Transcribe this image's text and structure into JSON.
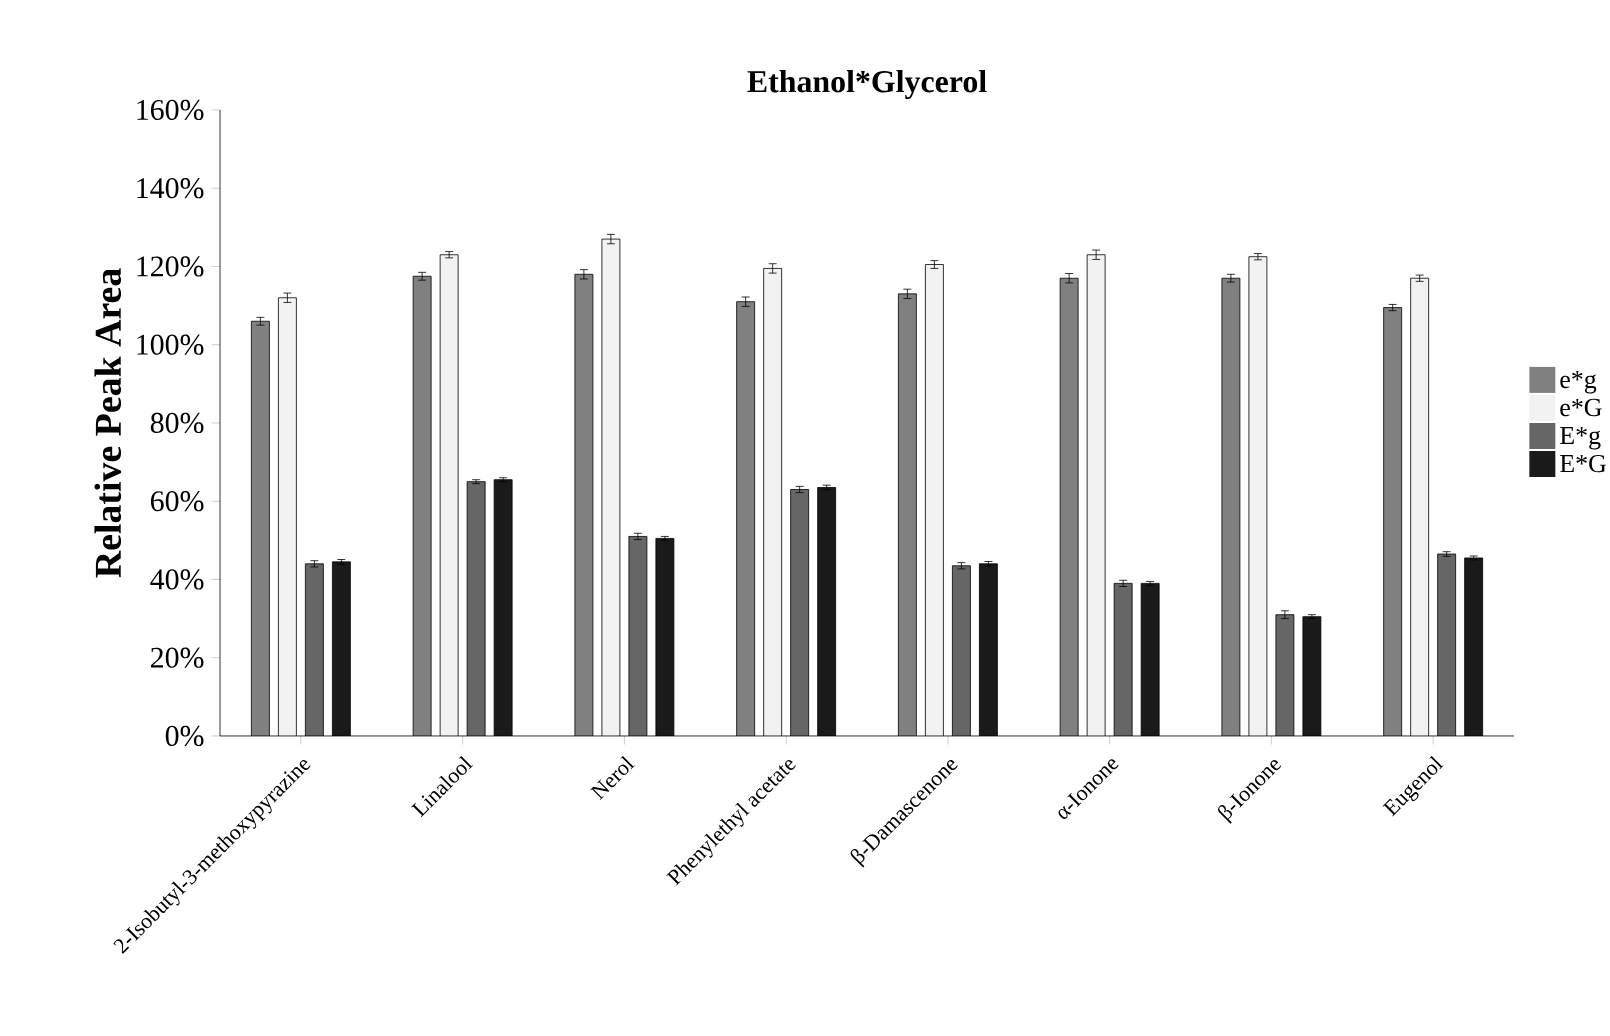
{
  "chart_data": {
    "type": "bar",
    "title": "Ethanol*Glycerol",
    "ylabel": "Relative Peak Area",
    "categories": [
      "2-Isobutyl-3-methoxypyrazine",
      "Linalool",
      "Nerol",
      "Phenylethyl acetate",
      "β-Damascenone",
      "α-Ionone",
      "β-Ionone",
      "Eugenol"
    ],
    "series": [
      {
        "name": "e*g",
        "color": "#808080",
        "values": [
          106,
          117.5,
          118,
          111,
          113,
          117,
          117,
          109.5
        ],
        "errors": [
          1,
          1,
          1.2,
          1.2,
          1.2,
          1.2,
          1,
          0.8
        ]
      },
      {
        "name": "e*G",
        "color": "#f2f2f2",
        "values": [
          112,
          123,
          127,
          119.5,
          120.5,
          123,
          122.5,
          117
        ],
        "errors": [
          1.2,
          0.8,
          1.2,
          1.2,
          1,
          1.2,
          0.8,
          0.8
        ]
      },
      {
        "name": "E*g",
        "color": "#666666",
        "values": [
          44,
          65,
          51,
          63,
          43.5,
          39,
          31,
          46.5
        ],
        "errors": [
          0.8,
          0.5,
          0.8,
          0.8,
          0.8,
          0.8,
          1,
          0.6
        ]
      },
      {
        "name": "E*G",
        "color": "#1a1a1a",
        "values": [
          44.5,
          65.5,
          50.5,
          63.5,
          44,
          39,
          30.5,
          45.5
        ],
        "errors": [
          0.6,
          0.5,
          0.5,
          0.6,
          0.6,
          0.5,
          0.5,
          0.5
        ]
      }
    ],
    "ylim": [
      0,
      160
    ],
    "yticks": [
      {
        "value": 0,
        "label": "0%"
      },
      {
        "value": 20,
        "label": "20%"
      },
      {
        "value": 40,
        "label": "40%"
      },
      {
        "value": 60,
        "label": "60%"
      },
      {
        "value": 80,
        "label": "80%"
      },
      {
        "value": 100,
        "label": "100%"
      },
      {
        "value": 120,
        "label": "120%"
      },
      {
        "value": 140,
        "label": "140%"
      },
      {
        "value": 160,
        "label": "160%"
      }
    ],
    "legend": "right",
    "grid": false
  }
}
